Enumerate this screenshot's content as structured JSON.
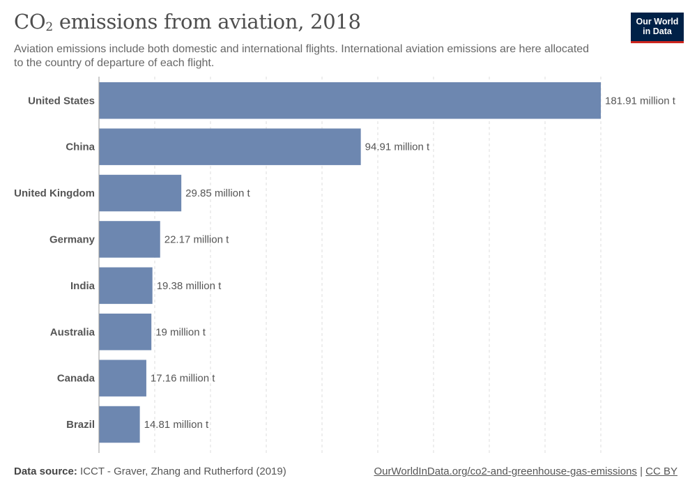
{
  "header": {
    "title_prefix": "CO",
    "title_sub": "2",
    "title_suffix": " emissions from aviation, 2018",
    "subtitle": "Aviation emissions include both domestic and international flights. International aviation emissions are here allocated to the country of departure of each flight.",
    "logo_line1": "Our World",
    "logo_line2": "in Data"
  },
  "footer": {
    "source_label": "Data source:",
    "source_text": " ICCT - Graver, Zhang and Rutherford (2019)",
    "url": "OurWorldInData.org/co2-and-greenhouse-gas-emissions",
    "separator": " | ",
    "license": "CC BY"
  },
  "colors": {
    "bar": "#6d87b0",
    "grid": "#dddddd",
    "axis": "#999999"
  },
  "chart_data": {
    "type": "bar",
    "orientation": "horizontal",
    "categories": [
      "United States",
      "China",
      "United Kingdom",
      "Germany",
      "India",
      "Australia",
      "Canada",
      "Brazil"
    ],
    "values": [
      181.91,
      94.91,
      29.85,
      22.17,
      19.38,
      19,
      17.16,
      14.81
    ],
    "value_labels": [
      "181.91 million t",
      "94.91 million t",
      "29.85 million t",
      "22.17 million t",
      "19.38 million t",
      "19 million t",
      "17.16 million t",
      "14.81 million t"
    ],
    "xlim": [
      0,
      181.91
    ],
    "grid": true
  }
}
